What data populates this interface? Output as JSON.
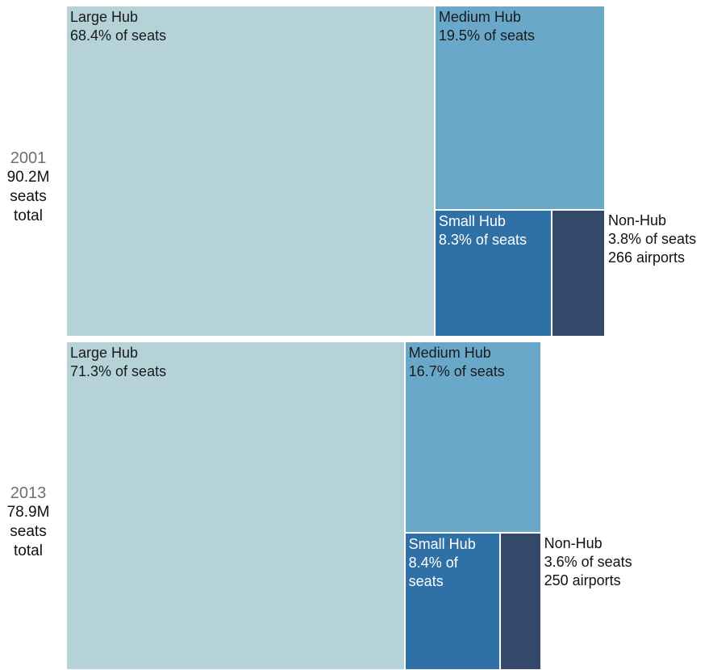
{
  "chart_data": [
    {
      "type": "treemap",
      "year": "2001",
      "total_lines": [
        "90.2M",
        "seats",
        "total"
      ],
      "total_seats_millions": 90.2,
      "segments": [
        {
          "name": "Large Hub",
          "share_pct": 68.4,
          "label_lines": [
            "Large Hub",
            "68.4% of seats"
          ],
          "color": "#b4d2d8"
        },
        {
          "name": "Medium Hub",
          "share_pct": 19.5,
          "label_lines": [
            "Medium Hub",
            "19.5% of seats"
          ],
          "color": "#6aa8ca"
        },
        {
          "name": "Small Hub",
          "share_pct": 8.3,
          "label_lines": [
            "Small Hub",
            "8.3% of seats"
          ],
          "color": "#2f70a6"
        },
        {
          "name": "Non-Hub",
          "share_pct": 3.8,
          "label_lines": [
            "Non-Hub",
            "3.8% of seats",
            "266 airports"
          ],
          "color": "#33486b"
        }
      ]
    },
    {
      "type": "treemap",
      "year": "2013",
      "total_lines": [
        "78.9M",
        "seats",
        "total"
      ],
      "total_seats_millions": 78.9,
      "segments": [
        {
          "name": "Large Hub",
          "share_pct": 71.3,
          "label_lines": [
            "Large Hub",
            "71.3% of seats"
          ],
          "color": "#b4d2d8"
        },
        {
          "name": "Medium Hub",
          "share_pct": 16.7,
          "label_lines": [
            "Medium Hub",
            "16.7% of seats"
          ],
          "color": "#6aa8ca"
        },
        {
          "name": "Small Hub",
          "share_pct": 8.4,
          "label_lines": [
            "Small Hub",
            "8.4% of",
            "seats"
          ],
          "color": "#2f70a6"
        },
        {
          "name": "Non-Hub",
          "share_pct": 3.6,
          "label_lines": [
            "Non-Hub",
            "3.6% of seats",
            "250 airports"
          ],
          "color": "#33486b"
        }
      ]
    }
  ]
}
